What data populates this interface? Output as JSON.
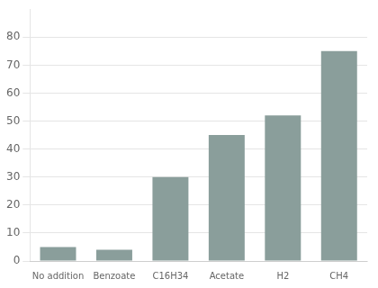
{
  "chart_data": {
    "type": "bar",
    "categories": [
      "No addition",
      "Benzoate",
      "C16H34",
      "Acetate",
      "H2",
      "CH4"
    ],
    "values": [
      5,
      4,
      30,
      45,
      52,
      75
    ],
    "color": "#8a9e9b",
    "ylim": [
      0,
      90
    ],
    "yticks": [
      0,
      10,
      20,
      30,
      40,
      50,
      60,
      70,
      80
    ],
    "grid": true
  }
}
